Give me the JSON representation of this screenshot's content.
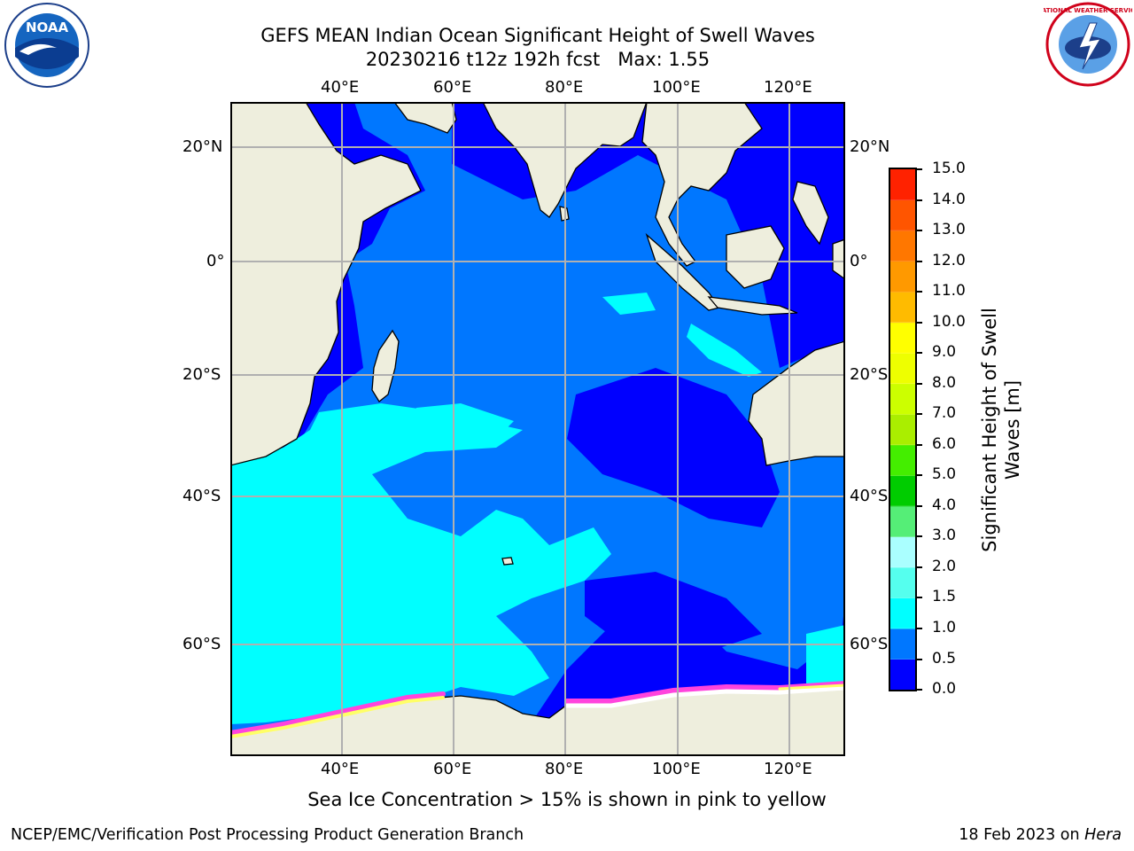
{
  "title": {
    "line1": "GEFS MEAN Indian Ocean Significant Height of Swell Waves",
    "line2": "20230216 t12z 192h fcst   Max: 1.55"
  },
  "map": {
    "lon_ticks": [
      "40°E",
      "60°E",
      "80°E",
      "100°E",
      "120°E"
    ],
    "lat_ticks_left": [
      "20°N",
      "0°",
      "20°S",
      "40°S",
      "60°S"
    ],
    "lat_ticks_right": [
      "20°N",
      "0°",
      "20°S",
      "40°S",
      "60°S"
    ],
    "colors": {
      "land": "#eeeedd",
      "coast": "#000000",
      "grid": "#b0b0b0",
      "sea_ice": [
        "#ff44dd",
        "#ffff66",
        "#ffffff"
      ]
    }
  },
  "colorbar": {
    "label_line1": "Significant Height of Swell",
    "label_line2": "Waves [m]",
    "ticks": [
      "0.0",
      "0.5",
      "1.0",
      "1.5",
      "2.0",
      "3.0",
      "4.0",
      "5.0",
      "6.0",
      "7.0",
      "8.0",
      "9.0",
      "10.0",
      "11.0",
      "12.0",
      "13.0",
      "14.0",
      "15.0"
    ],
    "colors": [
      "#0000ff",
      "#0077ff",
      "#00ffff",
      "#55ffee",
      "#aaffff",
      "#55ee77",
      "#00cc00",
      "#44ee00",
      "#aaee00",
      "#ccff00",
      "#eeff00",
      "#ffff00",
      "#ffbb00",
      "#ff9900",
      "#ff7700",
      "#ff5500",
      "#ff2200",
      "#ff0000"
    ]
  },
  "note": "Sea Ice Concentration > 15% is shown in pink to yellow",
  "footer": {
    "left": "NCEP/EMC/Verification Post Processing Product Generation Branch",
    "right_prefix": "18 Feb 2023 on ",
    "right_host": "Hera"
  },
  "logos": {
    "noaa_text": "NOAA",
    "nws_text": "NATIONAL WEATHER SERVICE"
  }
}
